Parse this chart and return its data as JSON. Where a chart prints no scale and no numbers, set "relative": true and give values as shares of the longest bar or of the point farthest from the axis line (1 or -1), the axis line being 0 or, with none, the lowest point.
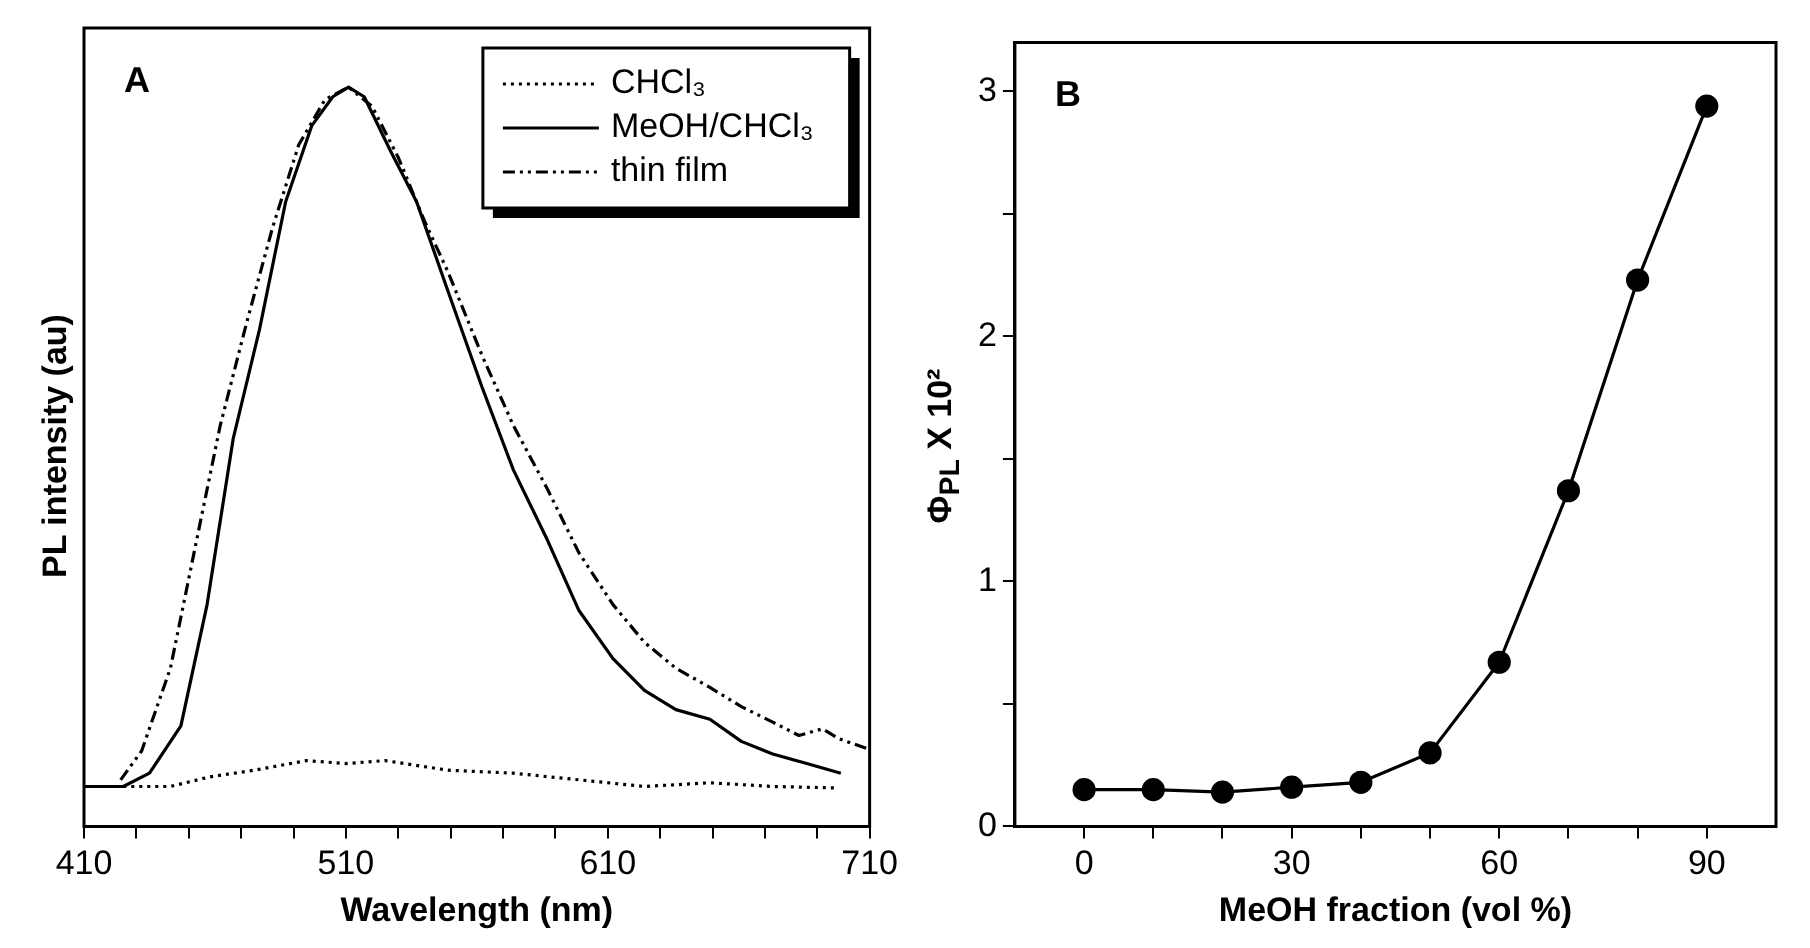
{
  "chart_data": [
    {
      "type": "line",
      "relative": true,
      "xlabel": "Wavelength (nm)",
      "ylabel": "PL intensity (au)",
      "annotations": [
        "A"
      ],
      "legend": "top right",
      "marker": "none",
      "xlim": [
        410,
        710
      ],
      "xticks": [
        410,
        {
          "value": 430,
          "label": null
        },
        {
          "value": 450,
          "label": null
        },
        {
          "value": 470,
          "label": null
        },
        {
          "value": 490,
          "label": null
        },
        510,
        {
          "value": 530,
          "label": null
        },
        {
          "value": 550,
          "label": null
        },
        {
          "value": 570,
          "label": null
        },
        {
          "value": 590,
          "label": null
        },
        610,
        {
          "value": 630,
          "label": null
        },
        {
          "value": 650,
          "label": null
        },
        {
          "value": 670,
          "label": null
        },
        {
          "value": 690,
          "label": null
        },
        710
      ],
      "series": [
        {
          "name": "CHCl₃",
          "color": "#000000",
          "line_style": "dotted",
          "x": [
            425,
            443,
            458,
            475,
            495,
            510,
            525,
            549,
            574,
            599,
            624,
            649,
            673,
            698
          ],
          "values": [
            0.054,
            0.054,
            0.067,
            0.076,
            0.089,
            0.085,
            0.089,
            0.076,
            0.072,
            0.063,
            0.054,
            0.059,
            0.054,
            0.052
          ]
        },
        {
          "name": "MeOH/CHCl₃",
          "color": "#000000",
          "line_style": "solid",
          "x": [
            410,
            425,
            435,
            447,
            457,
            467,
            477,
            487,
            497,
            505,
            511,
            517,
            527,
            537,
            549,
            562,
            574,
            587,
            599,
            612,
            624,
            636,
            649,
            661,
            673,
            686,
            699
          ],
          "values": [
            0.054,
            0.054,
            0.072,
            0.136,
            0.3,
            0.525,
            0.672,
            0.845,
            0.948,
            0.987,
            1,
            0.987,
            0.914,
            0.845,
            0.724,
            0.594,
            0.482,
            0.387,
            0.292,
            0.227,
            0.184,
            0.158,
            0.145,
            0.115,
            0.098,
            0.085,
            0.072
          ]
        },
        {
          "name": "thin film",
          "color": "#000000",
          "line_style": "dashdot",
          "x": [
            424,
            432,
            443,
            453,
            462,
            472,
            482,
            492,
            502,
            511,
            520,
            530,
            540,
            549,
            562,
            574,
            587,
            599,
            612,
            624,
            636,
            649,
            661,
            673,
            683,
            692,
            698,
            710
          ],
          "values": [
            0.063,
            0.102,
            0.214,
            0.387,
            0.542,
            0.68,
            0.81,
            0.922,
            0.983,
            1,
            0.974,
            0.905,
            0.819,
            0.75,
            0.637,
            0.542,
            0.456,
            0.37,
            0.3,
            0.249,
            0.214,
            0.188,
            0.162,
            0.141,
            0.123,
            0.132,
            0.119,
            0.104
          ]
        }
      ]
    },
    {
      "type": "line",
      "xlabel": "MeOH fraction (vol %)",
      "ylabel": "Φ$_{PL}$ X 10²",
      "annotations": [
        "B"
      ],
      "marker": "circle",
      "xlim": [
        -10,
        100
      ],
      "xticks": [
        0,
        {
          "value": 10,
          "label": null
        },
        {
          "value": 20,
          "label": null
        },
        30,
        {
          "value": 40,
          "label": null
        },
        {
          "value": 50,
          "label": null
        },
        60,
        {
          "value": 70,
          "label": null
        },
        {
          "value": 80,
          "label": null
        },
        90
      ],
      "ylim": [
        0,
        3.2
      ],
      "yticks": [
        0,
        {
          "value": 0.5,
          "label": null
        },
        1,
        {
          "value": 1.5,
          "label": null
        },
        2,
        {
          "value": 2.5,
          "label": null
        },
        3
      ],
      "series": [
        {
          "color": "#000000",
          "x": [
            0,
            10,
            20,
            30,
            40,
            50,
            60,
            70,
            80,
            90
          ],
          "values": [
            0.15,
            0.15,
            0.14,
            0.16,
            0.18,
            0.3,
            0.67,
            1.37,
            2.23,
            2.94
          ]
        }
      ]
    }
  ]
}
